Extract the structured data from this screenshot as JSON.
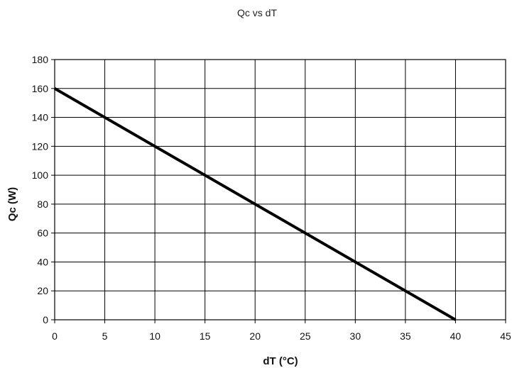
{
  "chart_data": {
    "type": "line",
    "title": "Qc vs dT",
    "xlabel": "dT (°C)",
    "ylabel": "Qc (W)",
    "xlim": [
      0,
      45
    ],
    "ylim": [
      0,
      180
    ],
    "xticks": [
      0,
      5,
      10,
      15,
      20,
      25,
      30,
      35,
      40,
      45
    ],
    "yticks": [
      0,
      20,
      40,
      60,
      80,
      100,
      120,
      140,
      160,
      180
    ],
    "grid": true,
    "legend": "none",
    "series": [
      {
        "color": "#000000",
        "x": [
          0,
          40
        ],
        "y": [
          160,
          0
        ]
      }
    ]
  }
}
